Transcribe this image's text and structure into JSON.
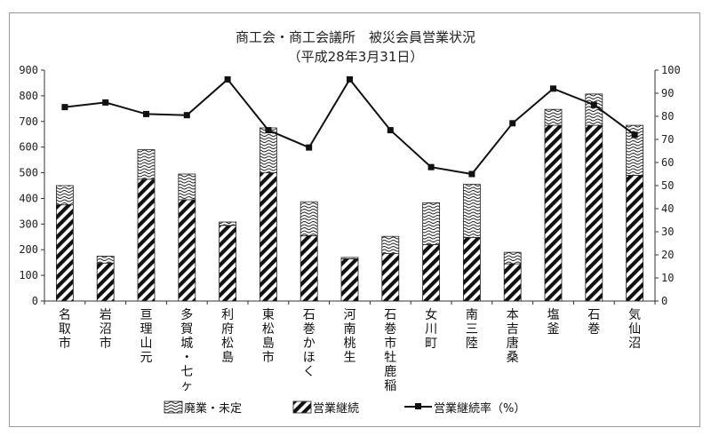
{
  "chart_data": {
    "type": "bar",
    "title": "商工会・商工会議所　被災会員営業状況",
    "subtitle": "（平成28年3月31日）",
    "categories": [
      "名取市",
      "岩沼市",
      "亘理山元",
      "多賀城・七ヶ浜",
      "利府松島",
      "東松島市",
      "石巻かほく",
      "河南桃生",
      "石巻市牡鹿稲井",
      "女川町",
      "南三陸",
      "本吉唐桑",
      "塩釜",
      "石巻",
      "気仙沼"
    ],
    "series": [
      {
        "name": "営業継続",
        "kind": "stacked-bar",
        "pattern": "diagonal-hatch",
        "values": [
          375,
          148,
          475,
          395,
          295,
          500,
          255,
          165,
          185,
          220,
          248,
          145,
          685,
          685,
          490
        ]
      },
      {
        "name": "廃業・未定",
        "kind": "stacked-bar",
        "pattern": "wave-hatch",
        "values": [
          75,
          27,
          115,
          100,
          13,
          175,
          132,
          5,
          67,
          163,
          207,
          45,
          62,
          122,
          195
        ]
      },
      {
        "name": "営業継続率（%）",
        "kind": "line",
        "axis": "right",
        "values": [
          84,
          86,
          81,
          80.5,
          96,
          74,
          66.5,
          96,
          74,
          58,
          55,
          77,
          92,
          85,
          72
        ]
      }
    ],
    "ylim": [
      0,
      900
    ],
    "yticks": [
      0,
      100,
      200,
      300,
      400,
      500,
      600,
      700,
      800,
      900
    ],
    "y2lim": [
      0,
      100
    ],
    "y2ticks": [
      0,
      10,
      20,
      30,
      40,
      50,
      60,
      70,
      80,
      90,
      100
    ],
    "grid": false,
    "legend": {
      "placement": "bottom",
      "items": [
        "廃業・未定",
        "営業継続",
        "営業継続率（%）"
      ]
    },
    "colors": {
      "ink": "#111111",
      "axis": "#333333"
    }
  }
}
